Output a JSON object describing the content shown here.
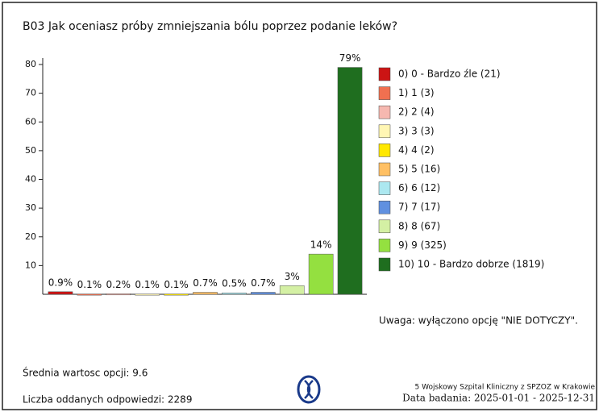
{
  "chart_data": {
    "type": "bar",
    "title": "B03 Jak oceniasz próby zmniejszania bólu poprzez podanie leków?",
    "categories": [
      "0) 0 - Bardzo źle (21)",
      "1) 1 (3)",
      "2) 2 (4)",
      "3) 3 (3)",
      "4) 4 (2)",
      "5) 5 (16)",
      "6) 6 (12)",
      "7) 7 (17)",
      "8) 8 (67)",
      "9) 9 (325)",
      "10) 10 - Bardzo dobrze (1819)"
    ],
    "values": [
      0.9,
      0.1,
      0.2,
      0.1,
      0.1,
      0.7,
      0.5,
      0.7,
      3,
      14,
      79
    ],
    "value_labels": [
      "0.9%",
      "0.1%",
      "0.2%",
      "0.1%",
      "0.1%",
      "0.7%",
      "0.5%",
      "0.7%",
      "3%",
      "14%",
      "79%"
    ],
    "colors": [
      "#cc1414",
      "#f07050",
      "#f6b8b0",
      "#fff6b4",
      "#ffe800",
      "#ffc064",
      "#ace8f0",
      "#6090e0",
      "#d4f0a4",
      "#94e040",
      "#1f6e1f"
    ],
    "ylim": [
      0,
      80
    ],
    "yticks": [
      10,
      20,
      30,
      40,
      50,
      60,
      70,
      80
    ],
    "legend": "right",
    "note": "Uwaga: wyłączono opcję \"NIE DOTYCZY\"."
  },
  "footer": {
    "mean": "Średnia wartosc opcji: 9.6",
    "count": "Liczba oddanych odpowiedzi: 2289",
    "institution": "5 Wojskowy Szpital Kliniczny z SPZOZ w Krakowie",
    "dates": "Data badania: 2025-01-01 - 2025-12-31"
  }
}
